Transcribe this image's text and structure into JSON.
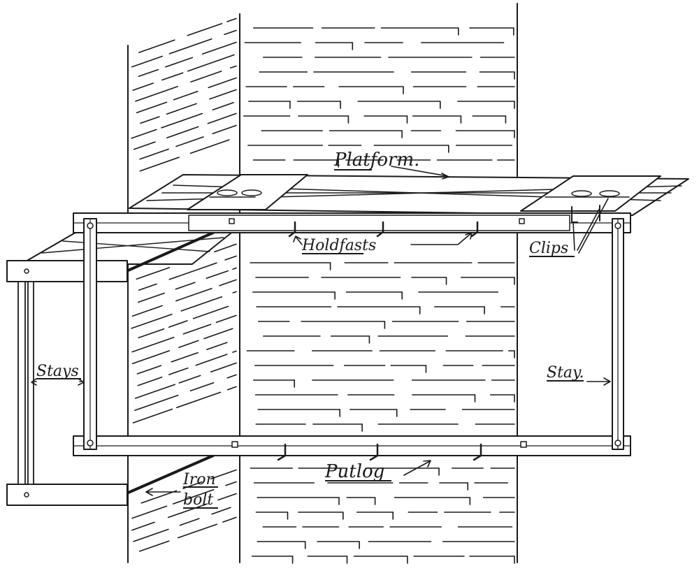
{
  "labels": {
    "platform": "Platform.",
    "holdfasts": "Holdfasts",
    "clips": "Clips",
    "stays": "Stays",
    "stay": "Stay.",
    "putlog": "Putlog",
    "iron": "Iron",
    "bolt": "bolt"
  }
}
